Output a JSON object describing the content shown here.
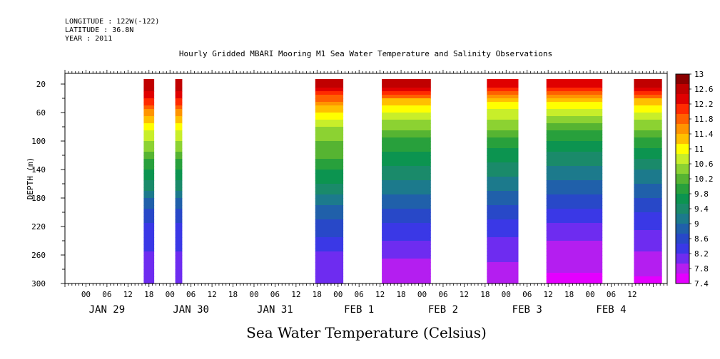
{
  "header": {
    "longitude": "LONGITUDE : 122W(-122)",
    "latitude": "LATITUDE : 36.8N",
    "year": "YEAR : 2011",
    "title": "Hourly Gridded MBARI Mooring M1 Sea Water Temperature and Salinity Observations"
  },
  "chart_data": {
    "type": "heatmap",
    "title": "Hourly Gridded MBARI Mooring M1 Sea Water Temperature and Salinity Observations",
    "variable_label": "Sea Water Temperature (Celsius)",
    "ylabel": "DEPTH (m)",
    "ylim": [
      300,
      5
    ],
    "y_ticks": [
      20,
      60,
      100,
      140,
      180,
      220,
      260,
      300
    ],
    "xlim_hours": [
      -6,
      138
    ],
    "x_hour_ticks": [
      "00",
      "06",
      "12",
      "18",
      "00",
      "06",
      "12",
      "18",
      "00",
      "06",
      "12",
      "18",
      "00",
      "06",
      "12",
      "18",
      "00",
      "06",
      "12",
      "18",
      "00",
      "06",
      "12",
      "18",
      "00",
      "06",
      "12",
      "18"
    ],
    "x_day_labels": [
      "JAN 29",
      "JAN 30",
      "JAN 31",
      "FEB  1",
      "FEB  2",
      "FEB  3",
      "FEB  4"
    ],
    "colorbar": {
      "levels": [
        13,
        12.6,
        12.2,
        11.8,
        11.4,
        11,
        10.6,
        10.2,
        9.8,
        9.4,
        9,
        8.6,
        8.2,
        7.8,
        7.4
      ],
      "colors": [
        "#8b0000",
        "#c00000",
        "#e00000",
        "#ff2a00",
        "#ff6000",
        "#ff9400",
        "#ffc000",
        "#ffff00",
        "#c8ee2a",
        "#8cd232",
        "#56b432",
        "#28a03c",
        "#0c9450",
        "#1a8a6a",
        "#1c7a8c",
        "#2060aa",
        "#2848c8",
        "#3a38e6",
        "#6e2cf0",
        "#b41ef0",
        "#e400ff"
      ],
      "labels": [
        "13",
        "12.6",
        "12.2",
        "11.8",
        "11.4",
        "11",
        "10.6",
        "10.2",
        "9.8",
        "9.4",
        "9",
        "8.6",
        "8.2",
        "7.8",
        "7.4"
      ]
    },
    "observation_blocks": [
      {
        "start_hour": 16.5,
        "end_hour": 19.5,
        "profile": [
          12.8,
          12.0,
          11.0,
          10.4,
          9.8,
          9.2,
          8.6,
          8.2,
          8.0,
          7.9
        ]
      },
      {
        "start_hour": 25.5,
        "end_hour": 27.5,
        "profile": [
          12.8,
          12.0,
          11.0,
          10.4,
          9.8,
          9.2,
          8.6,
          8.2,
          8.0,
          7.9
        ]
      },
      {
        "start_hour": 65.5,
        "end_hour": 73.5,
        "profile": [
          12.8,
          11.5,
          10.6,
          10.2,
          9.8,
          9.3,
          8.8,
          8.4,
          8.0,
          7.8
        ]
      },
      {
        "start_hour": 84.5,
        "end_hour": 98.5,
        "profile": [
          12.6,
          11.2,
          10.4,
          9.8,
          9.4,
          9.0,
          8.6,
          8.2,
          7.8,
          7.5
        ]
      },
      {
        "start_hour": 114.5,
        "end_hour": 123.5,
        "profile": [
          12.4,
          11.0,
          10.4,
          9.8,
          9.3,
          8.9,
          8.5,
          8.1,
          7.8,
          7.6
        ]
      },
      {
        "start_hour": 131.5,
        "end_hour": 147.5,
        "profile": [
          12.6,
          11.0,
          10.2,
          9.6,
          9.1,
          8.7,
          8.3,
          7.9,
          7.6,
          7.4
        ]
      },
      {
        "start_hour": 156.5,
        "end_hour": 164.5,
        "profile": [
          12.6,
          11.2,
          10.4,
          9.8,
          9.2,
          8.8,
          8.4,
          8.0,
          7.7,
          7.4
        ]
      }
    ],
    "profile_depths": [
      20,
      45,
      75,
      105,
      135,
      165,
      195,
      225,
      260,
      300
    ]
  }
}
